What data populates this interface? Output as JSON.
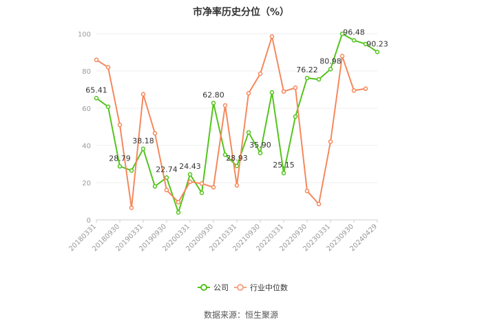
{
  "chart_data": {
    "type": "line",
    "title": "市净率历史分位（%）",
    "ylim": [
      0,
      100
    ],
    "yticks": [
      0,
      20,
      40,
      60,
      80,
      100
    ],
    "grid": true,
    "legend_position": "bottom",
    "x_tick_labels": [
      "20180331",
      "20180930",
      "20190331",
      "20190930",
      "20200331",
      "20200930",
      "20210331",
      "20210930",
      "20220331",
      "20220930",
      "20230331",
      "20230930",
      "20240429"
    ],
    "series": [
      {
        "name": "公司",
        "color": "#52c41a",
        "values": [
          65.41,
          60.8,
          28.79,
          26.5,
          38.18,
          18.0,
          22.74,
          4.0,
          24.43,
          14.5,
          62.8,
          35.0,
          28.93,
          47.0,
          35.9,
          68.5,
          25.15,
          55.5,
          76.22,
          75.5,
          80.98,
          100.0,
          96.48,
          94.5,
          90.23
        ],
        "labels": [
          "65.41",
          "",
          "28.79",
          "",
          "38.18",
          "",
          "22.74",
          "",
          "24.43",
          "",
          "62.80",
          "",
          "28.93",
          "",
          "35.90",
          "",
          "25.15",
          "",
          "76.22",
          "",
          "80.98",
          "",
          "96.48",
          "",
          "90.23"
        ]
      },
      {
        "name": "行业中位数",
        "color": "#f5875b",
        "values": [
          86.0,
          82.0,
          51.0,
          6.5,
          67.5,
          46.5,
          16.0,
          9.5,
          20.5,
          19.5,
          17.5,
          61.5,
          18.5,
          68.0,
          78.5,
          98.5,
          69.0,
          71.0,
          15.5,
          8.5,
          42.0,
          88.0,
          69.5,
          70.5,
          null
        ]
      }
    ]
  },
  "source": "数据来源：恒生聚源"
}
